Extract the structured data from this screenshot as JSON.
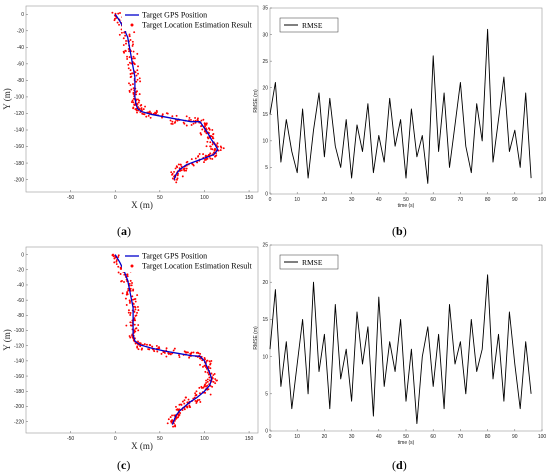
{
  "chart_data": [
    {
      "id": "a",
      "type": "scatter",
      "caption": "a",
      "xlabel": "X (m)",
      "ylabel": "Y (m)",
      "xlim": [
        -100,
        160
      ],
      "ylim": [
        -215,
        10
      ],
      "xticks": [
        -50,
        0,
        50,
        100,
        150
      ],
      "yticks": [
        0,
        -20,
        -40,
        -60,
        -80,
        -100,
        -120,
        -140,
        -160,
        -180,
        -200
      ],
      "grid": false,
      "legend_position": "top-right",
      "series": [
        {
          "name": "Target GPS Position",
          "kind": "line",
          "color": "#0000cc",
          "x": [
            0,
            5,
            10,
            14,
            16,
            18,
            20,
            22,
            22,
            22,
            23,
            25,
            30,
            40,
            55,
            70,
            85,
            95,
            100,
            105,
            108,
            112,
            115,
            110,
            100,
            90,
            80,
            72,
            68,
            66
          ],
          "y": [
            0,
            -8,
            -18,
            -28,
            -40,
            -52,
            -64,
            -76,
            -88,
            -100,
            -108,
            -114,
            -118,
            -121,
            -124,
            -127,
            -130,
            -130,
            -138,
            -146,
            -152,
            -158,
            -164,
            -170,
            -174,
            -178,
            -182,
            -188,
            -194,
            -200
          ]
        },
        {
          "name": "Target Location Estimation Result",
          "kind": "scatter",
          "color": "#ff0000",
          "source": "scattered estimates around the GPS track, spread about 8 m"
        }
      ]
    },
    {
      "id": "b",
      "type": "line",
      "caption": "b",
      "xlabel": "time (s)",
      "ylabel": "RMSE (m)",
      "xlim": [
        0,
        100
      ],
      "ylim": [
        0,
        35
      ],
      "xticks": [
        0,
        10,
        20,
        30,
        40,
        50,
        60,
        70,
        80,
        90,
        100
      ],
      "yticks": [
        0,
        5,
        10,
        15,
        20,
        25,
        30,
        35
      ],
      "grid": false,
      "legend_position": "top-left",
      "series": [
        {
          "name": "RMSE",
          "color": "#000000",
          "x": [
            0,
            2,
            4,
            6,
            8,
            10,
            12,
            14,
            16,
            18,
            20,
            22,
            24,
            26,
            28,
            30,
            32,
            34,
            36,
            38,
            40,
            42,
            44,
            46,
            48,
            50,
            52,
            54,
            56,
            58,
            60,
            62,
            64,
            66,
            68,
            70,
            72,
            74,
            76,
            78,
            80,
            82,
            84,
            86,
            88,
            90,
            92,
            94,
            96
          ],
          "y": [
            15,
            21,
            6,
            14,
            8,
            4,
            16,
            3,
            12,
            19,
            7,
            18,
            9,
            5,
            14,
            3,
            13,
            8,
            17,
            4,
            11,
            6,
            18,
            9,
            14,
            3,
            16,
            7,
            11,
            2,
            26,
            8,
            19,
            5,
            13,
            21,
            9,
            4,
            17,
            10,
            31,
            6,
            14,
            22,
            8,
            12,
            5,
            19,
            3
          ]
        }
      ]
    },
    {
      "id": "c",
      "type": "scatter",
      "caption": "c",
      "xlabel": "X (m)",
      "ylabel": "Y (m)",
      "xlim": [
        -100,
        160
      ],
      "ylim": [
        -235,
        10
      ],
      "xticks": [
        -50,
        0,
        50,
        100,
        150
      ],
      "yticks": [
        0,
        -20,
        -40,
        -60,
        -80,
        -100,
        -120,
        -140,
        -160,
        -180,
        -200,
        -220
      ],
      "grid": false,
      "legend_position": "top-right",
      "series": [
        {
          "name": "Target GPS Position",
          "kind": "line",
          "color": "#0000cc",
          "x": [
            0,
            5,
            10,
            14,
            16,
            18,
            20,
            20,
            20,
            20,
            22,
            28,
            40,
            55,
            70,
            85,
            95,
            100,
            103,
            106,
            108,
            106,
            100,
            92,
            84,
            78,
            72,
            68,
            66,
            64
          ],
          "y": [
            0,
            -10,
            -22,
            -34,
            -46,
            -58,
            -70,
            -82,
            -94,
            -106,
            -114,
            -119,
            -123,
            -127,
            -130,
            -133,
            -134,
            -140,
            -148,
            -156,
            -164,
            -172,
            -180,
            -188,
            -194,
            -200,
            -206,
            -212,
            -218,
            -224
          ]
        },
        {
          "name": "Target Location Estimation Result",
          "kind": "scatter",
          "color": "#ff0000",
          "source": "scattered estimates around the GPS track, spread about 8 m"
        }
      ]
    },
    {
      "id": "d",
      "type": "line",
      "caption": "d",
      "xlabel": "time (s)",
      "ylabel": "RMSE (m)",
      "xlim": [
        0,
        100
      ],
      "ylim": [
        0,
        25
      ],
      "xticks": [
        0,
        10,
        20,
        30,
        40,
        50,
        60,
        70,
        80,
        90,
        100
      ],
      "yticks": [
        0,
        5,
        10,
        15,
        20,
        25
      ],
      "grid": false,
      "legend_position": "top-left",
      "series": [
        {
          "name": "RMSE",
          "color": "#000000",
          "x": [
            0,
            2,
            4,
            6,
            8,
            10,
            12,
            14,
            16,
            18,
            20,
            22,
            24,
            26,
            28,
            30,
            32,
            34,
            36,
            38,
            40,
            42,
            44,
            46,
            48,
            50,
            52,
            54,
            56,
            58,
            60,
            62,
            64,
            66,
            68,
            70,
            72,
            74,
            76,
            78,
            80,
            82,
            84,
            86,
            88,
            90,
            92,
            94,
            96
          ],
          "y": [
            11,
            19,
            6,
            12,
            3,
            9,
            15,
            5,
            20,
            8,
            13,
            3,
            17,
            7,
            11,
            4,
            16,
            9,
            14,
            2,
            18,
            6,
            12,
            8,
            15,
            4,
            11,
            1,
            10,
            14,
            6,
            13,
            3,
            17,
            9,
            12,
            5,
            15,
            8,
            11,
            21,
            7,
            13,
            4,
            16,
            9,
            3,
            12,
            5
          ]
        }
      ]
    }
  ]
}
